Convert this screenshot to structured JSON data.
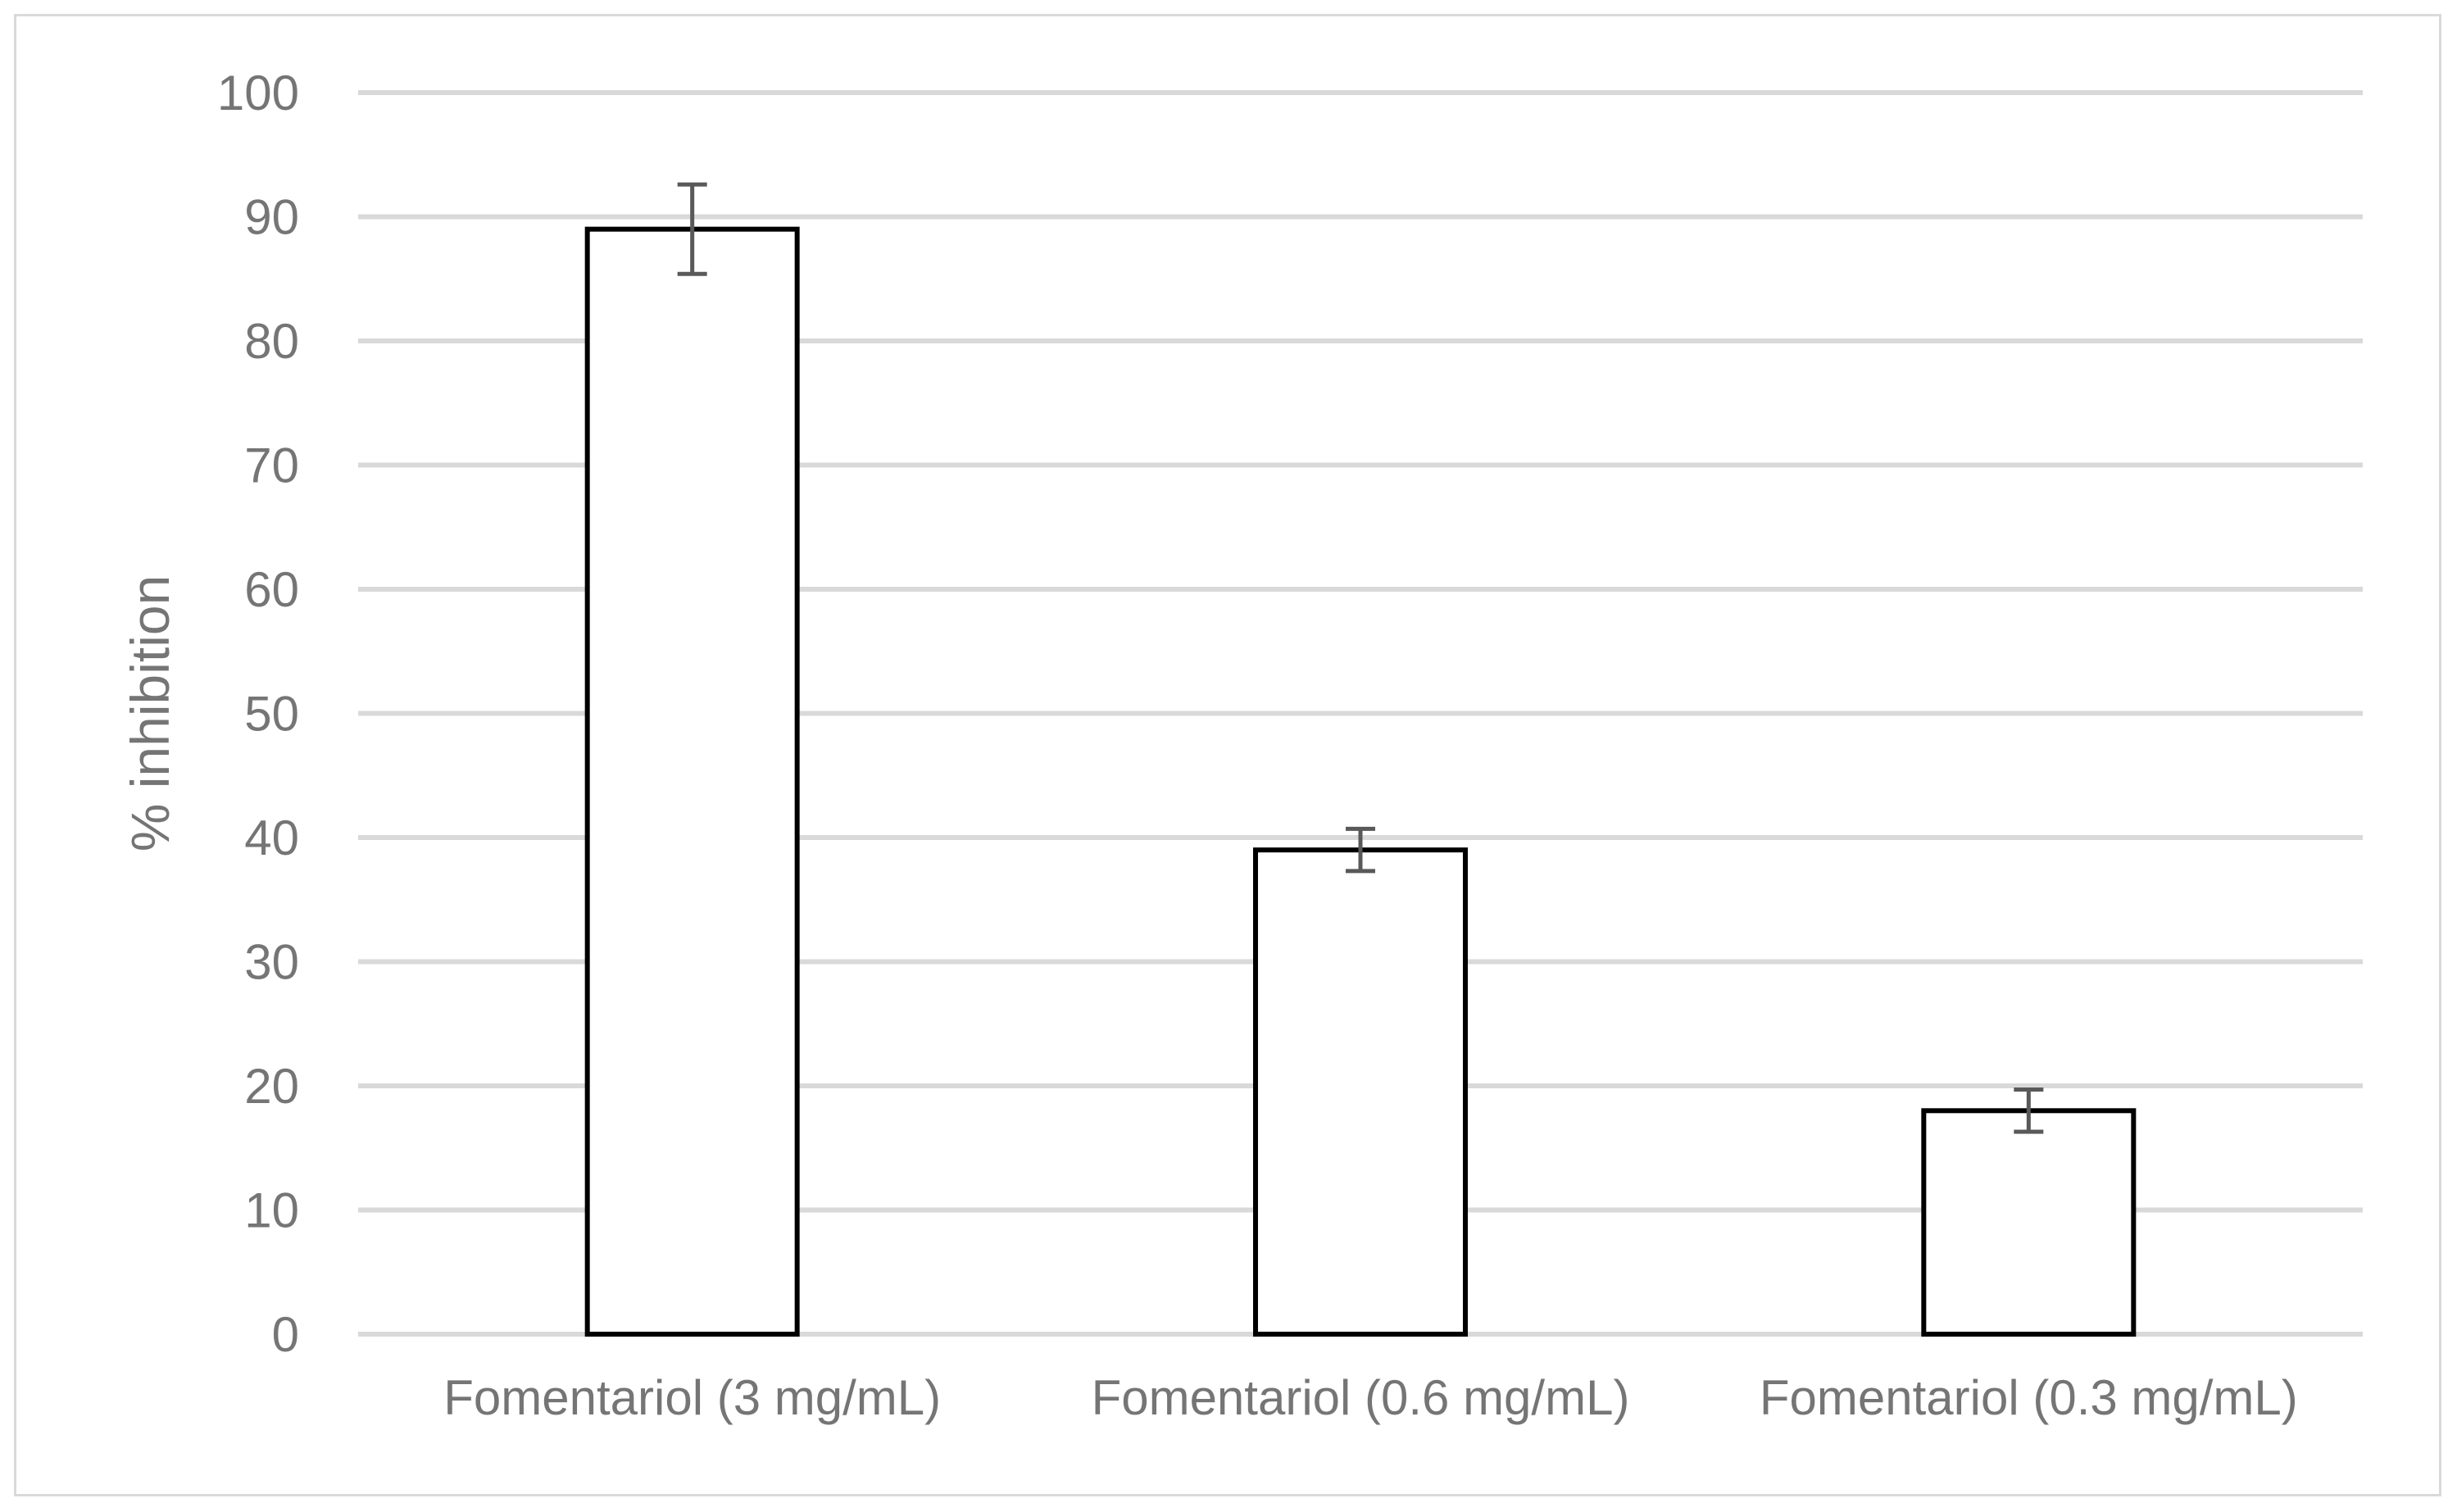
{
  "chart_data": {
    "type": "bar",
    "title": "",
    "xlabel": "",
    "ylabel": "% inhibition",
    "categories": [
      "Fomentariol (3 mg/mL)",
      "Fomentariol (0.6 mg/mL)",
      "Fomentariol (0.3 mg/mL)"
    ],
    "values": [
      89,
      39,
      18
    ],
    "error": [
      3.6,
      1.7,
      1.7
    ],
    "ylim": [
      0,
      100
    ],
    "yticks": [
      0,
      10,
      20,
      30,
      40,
      50,
      60,
      70,
      80,
      90,
      100
    ],
    "grid": true,
    "legend": "none",
    "colors": {
      "bar_fill": "#ffffff",
      "bar_stroke": "#000000",
      "error_bar": "#595959",
      "grid": "#d9d9d9",
      "text": "#757575"
    }
  }
}
